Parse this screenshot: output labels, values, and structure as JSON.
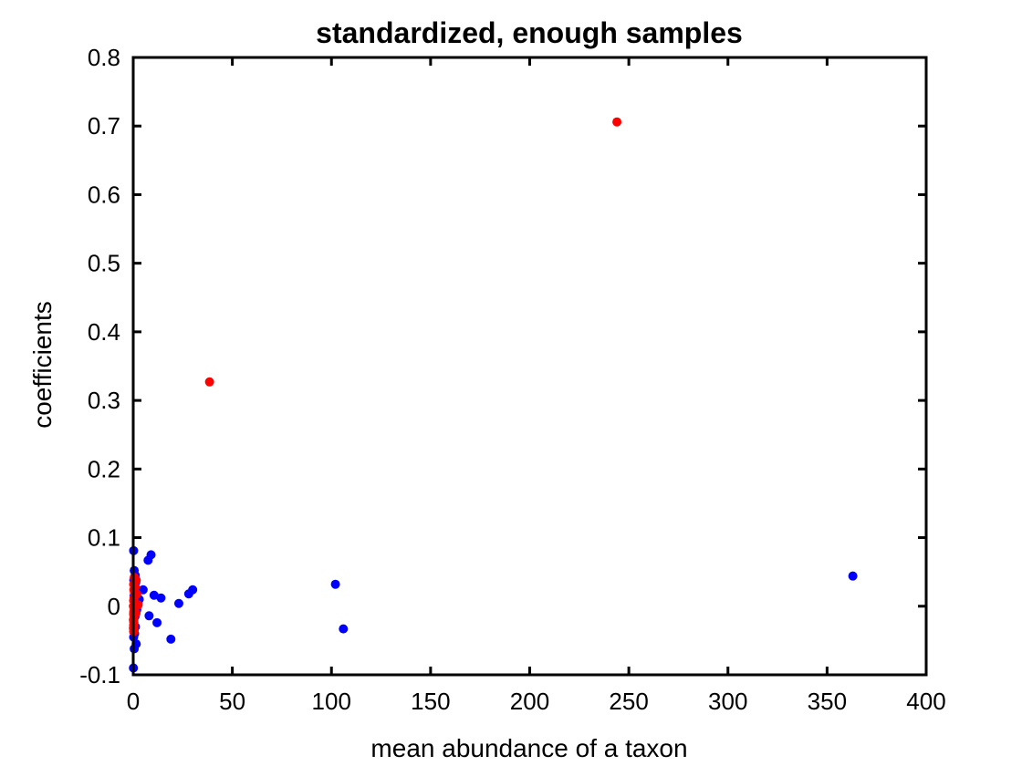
{
  "chart_data": {
    "type": "scatter",
    "title": "standardized, enough samples",
    "xlabel": "mean abundance of a taxon",
    "ylabel": "coefficients",
    "xlim": [
      0,
      400
    ],
    "ylim": [
      -0.1,
      0.8
    ],
    "xticks": [
      0,
      50,
      100,
      150,
      200,
      250,
      300,
      350,
      400
    ],
    "yticks": [
      -0.1,
      0,
      0.1,
      0.2,
      0.3,
      0.4,
      0.5,
      0.6,
      0.7,
      0.8
    ],
    "xtick_labels": [
      "0",
      "50",
      "100",
      "150",
      "200",
      "250",
      "300",
      "350",
      "400"
    ],
    "ytick_labels": [
      "-0.1",
      "0",
      "0.1",
      "0.2",
      "0.3",
      "0.4",
      "0.5",
      "0.6",
      "0.7",
      "0.8"
    ],
    "grid": false,
    "box": true,
    "series": [
      {
        "color": "#0000ff",
        "points": [
          [
            0.2,
            0.081
          ],
          [
            0.5,
            0.052
          ],
          [
            1.0,
            0.045
          ],
          [
            0.3,
            0.038
          ],
          [
            0.8,
            0.03
          ],
          [
            1.5,
            0.025
          ],
          [
            2.0,
            0.02
          ],
          [
            0.4,
            0.015
          ],
          [
            1.2,
            0.01
          ],
          [
            2.5,
            0.005
          ],
          [
            0.6,
            0.0
          ],
          [
            1.8,
            -0.005
          ],
          [
            0.3,
            -0.01
          ],
          [
            0.9,
            -0.015
          ],
          [
            0.2,
            -0.02
          ],
          [
            1.1,
            -0.03
          ],
          [
            0.4,
            -0.035
          ],
          [
            0.7,
            -0.04
          ],
          [
            0.2,
            -0.045
          ],
          [
            1.5,
            -0.055
          ],
          [
            0.5,
            -0.062
          ],
          [
            0.1,
            -0.09
          ],
          [
            3.0,
            0.01
          ],
          [
            1.3,
            0.035
          ],
          [
            5,
            0.024
          ],
          [
            7.5,
            0.067
          ],
          [
            9,
            0.075
          ],
          [
            10.5,
            0.016
          ],
          [
            14,
            0.012
          ],
          [
            8,
            -0.014
          ],
          [
            12,
            -0.024
          ],
          [
            19,
            -0.048
          ],
          [
            23,
            0.004
          ],
          [
            28,
            0.018
          ],
          [
            30,
            0.024
          ],
          [
            102,
            0.032
          ],
          [
            106,
            -0.033
          ],
          [
            363,
            0.044
          ]
        ]
      },
      {
        "color": "#ff0000",
        "points": [
          [
            244,
            0.706
          ],
          [
            38.5,
            0.327
          ],
          [
            0.5,
            0.042
          ],
          [
            1.5,
            0.038
          ],
          [
            0.2,
            0.032
          ],
          [
            1.0,
            0.028
          ],
          [
            0.3,
            0.024
          ],
          [
            0.6,
            0.02
          ],
          [
            1.2,
            0.016
          ],
          [
            0.4,
            0.012
          ],
          [
            0.2,
            0.008
          ],
          [
            0.8,
            0.004
          ],
          [
            0.1,
            0.0
          ],
          [
            0.5,
            -0.004
          ],
          [
            0.3,
            -0.008
          ],
          [
            0.2,
            -0.012
          ],
          [
            0.4,
            -0.016
          ],
          [
            0.1,
            -0.02
          ],
          [
            0.3,
            -0.024
          ],
          [
            0.2,
            -0.028
          ],
          [
            0.1,
            -0.032
          ],
          [
            0.2,
            -0.037
          ],
          [
            1.8,
            0.018
          ],
          [
            2.5,
            0.002
          ],
          [
            1.4,
            -0.01
          ]
        ]
      }
    ]
  }
}
